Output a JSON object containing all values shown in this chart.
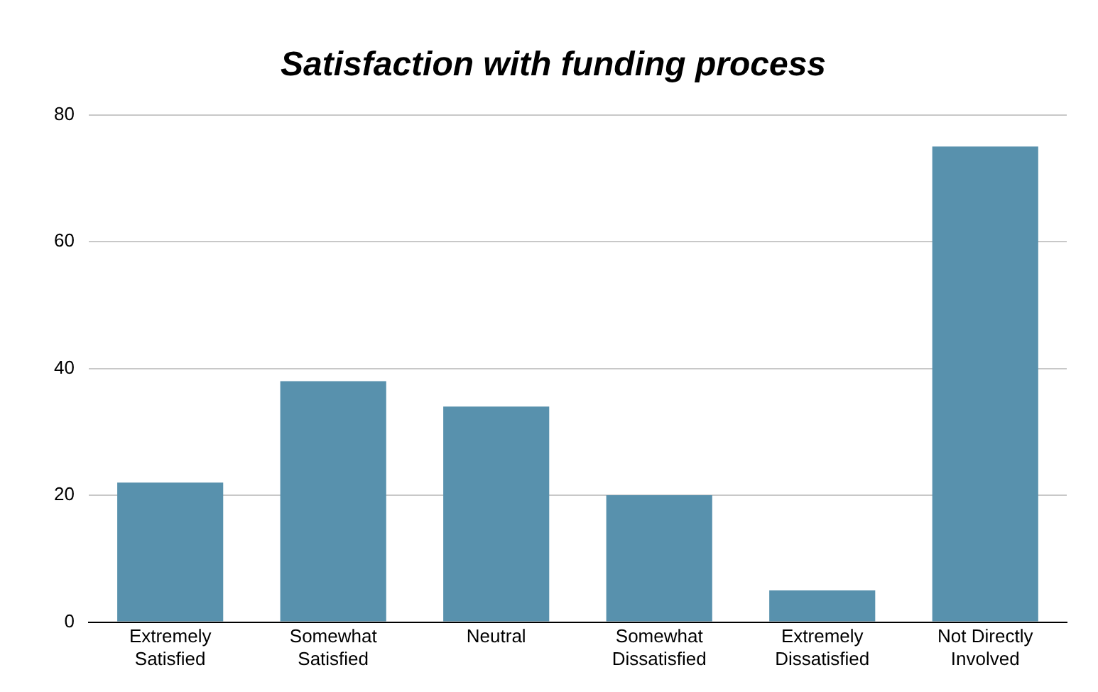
{
  "chart_data": {
    "type": "bar",
    "title": "Satisfaction with funding process",
    "categories": [
      "Extremely Satisfied",
      "Somewhat Satisfied",
      "Neutral",
      "Somewhat Dissatisfied",
      "Extremely Dissatisfied",
      "Not Directly Involved"
    ],
    "values": [
      22,
      38,
      34,
      20,
      5,
      75
    ],
    "color": "#5891ad",
    "ylim": [
      0,
      80
    ],
    "yticks": [
      0,
      20,
      40,
      60,
      80
    ],
    "grid": "y",
    "legend": false
  }
}
